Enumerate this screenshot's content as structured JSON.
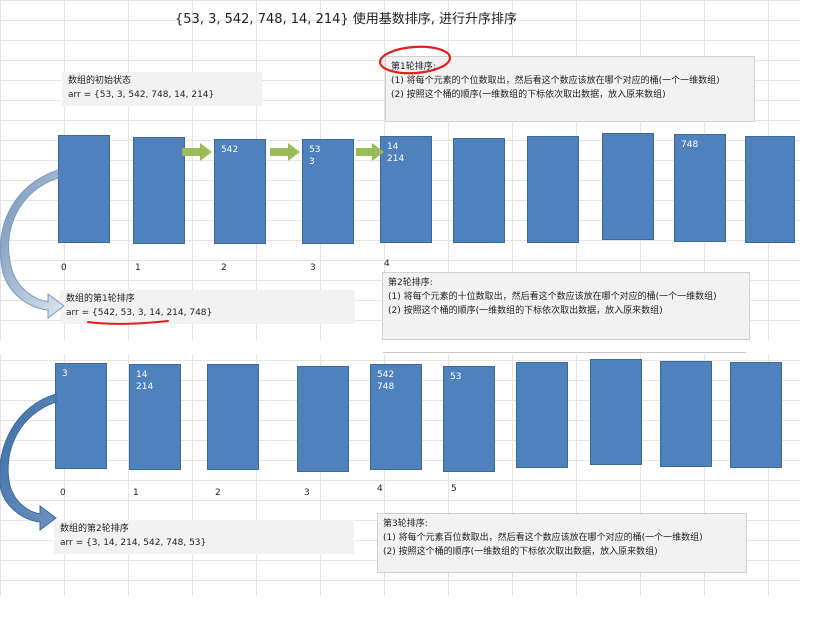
{
  "title": "{53, 3, 542, 748, 14, 214} 使用基数排序, 进行升序排序",
  "initial": {
    "label": "数组的初始状态",
    "arr": "arr = {53, 3, 542, 748, 14, 214}"
  },
  "round1_note": {
    "title": "第1轮排序:",
    "step1": "(1) 将每个元素的个位数取出，然后看这个数应该放在哪个对应的桶(一个一维数组)",
    "step2": "(2) 按照这个桶的顺序(一维数组的下标依次取出数据，放入原来数组)"
  },
  "round1_buckets": [
    [],
    [],
    [
      "542"
    ],
    [
      "53",
      "3"
    ],
    [
      "14",
      "214"
    ],
    [],
    [],
    [],
    [
      "748"
    ],
    []
  ],
  "round1_indices": [
    "0",
    "1",
    "2",
    "3",
    "4"
  ],
  "round1_result": {
    "label": "数组的第1轮排序",
    "arr": "arr = {542, 53, 3, 14, 214, 748}"
  },
  "round2_note": {
    "title": "第2轮排序:",
    "step1": "(1) 将每个元素的十位数取出，然后看这个数应该放在哪个对应的桶(一个一维数组)",
    "step2": "(2) 按照这个桶的顺序(一维数组的下标依次取出数据，放入原来数组)"
  },
  "round2_buckets": [
    [
      "3"
    ],
    [
      "14",
      "214"
    ],
    [],
    [],
    [
      "542",
      "748"
    ],
    [
      "53"
    ],
    [],
    [],
    [],
    []
  ],
  "round2_indices": [
    "0",
    "1",
    "2",
    "3",
    "4",
    "5"
  ],
  "round2_result": {
    "label": "数组的第2轮排序",
    "arr": "arr = {3, 14, 214, 542, 748, 53}"
  },
  "round3_note": {
    "title": "第3轮排序:",
    "step1": "(1) 将每个元素百位数取出，然后看这个数应该放在哪个对应的桶(一个一维数组)",
    "step2": "(2) 按照这个桶的顺序(一维数组的下标依次取出数据，放入原来数组)"
  },
  "colors": {
    "bucket": "#4f81bd",
    "arrow_green": "#9bbb59",
    "curve_arrow": "#a6bcd6",
    "annotation_red": "#e0211b"
  }
}
